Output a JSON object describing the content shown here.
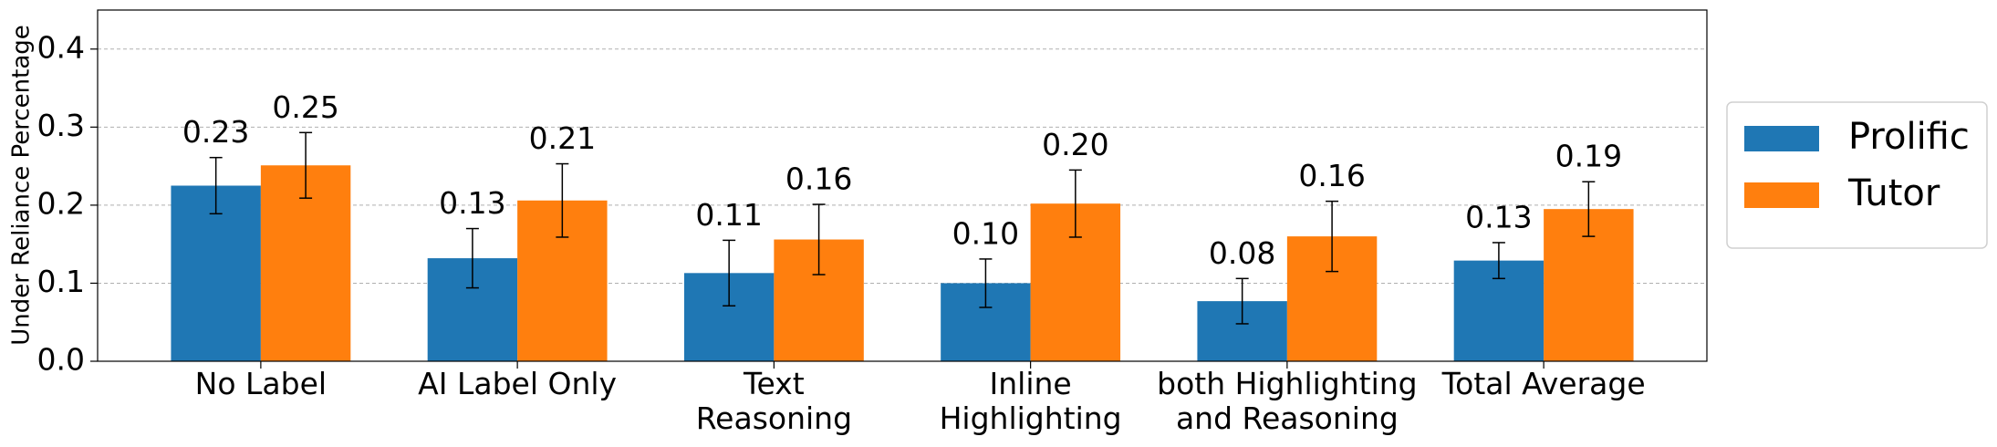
{
  "chart_data": {
    "type": "bar",
    "y_label": "Under Reliance Percentage",
    "categories": [
      "No Label",
      "AI Label Only",
      "Text\nReasoning",
      "Inline\nHighlighting",
      "both Highlighting\nand Reasoning",
      "Total Average"
    ],
    "series": [
      {
        "name": "Prolific",
        "color": "#1f77b4",
        "values": [
          0.225,
          0.132,
          0.113,
          0.1,
          0.077,
          0.129
        ],
        "value_labels": [
          "0.23",
          "0.13",
          "0.11",
          "0.10",
          "0.08",
          "0.13"
        ],
        "errors": [
          0.036,
          0.038,
          0.042,
          0.031,
          0.029,
          0.023
        ]
      },
      {
        "name": "Tutor",
        "color": "#ff7f0e",
        "values": [
          0.251,
          0.206,
          0.156,
          0.202,
          0.16,
          0.195
        ],
        "value_labels": [
          "0.25",
          "0.21",
          "0.16",
          "0.20",
          "0.16",
          "0.19"
        ],
        "errors": [
          0.042,
          0.047,
          0.045,
          0.043,
          0.045,
          0.035
        ]
      }
    ],
    "ylim": [
      0,
      0.45
    ],
    "yticks": [
      {
        "value": 0,
        "label": "0.0"
      },
      0.1,
      0.2,
      0.3,
      0.4
    ],
    "grid": true,
    "legend": "right"
  }
}
